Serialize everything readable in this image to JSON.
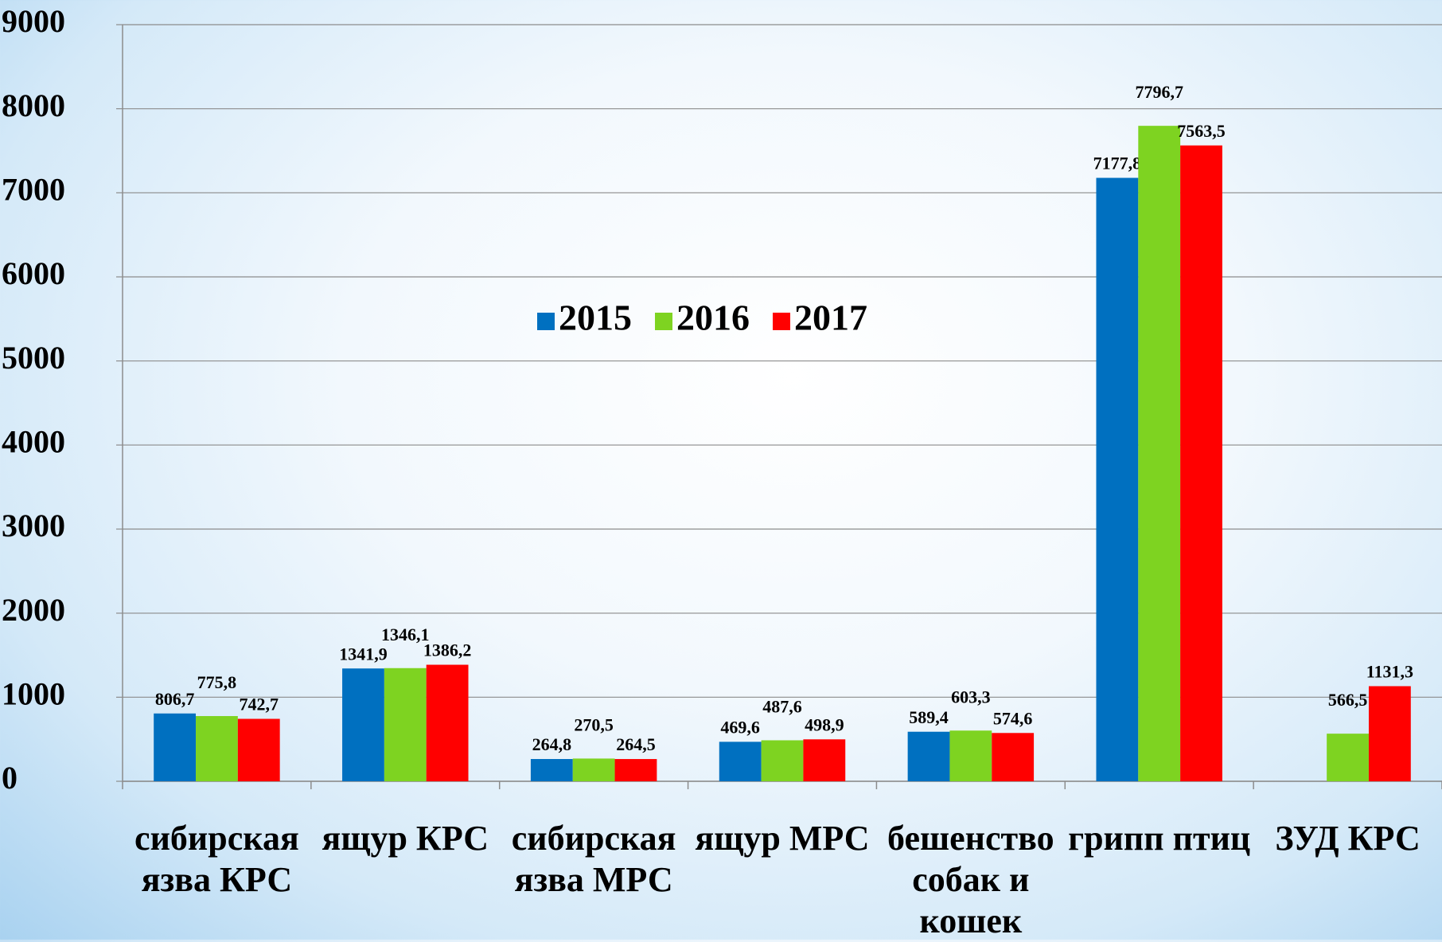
{
  "chart_data": {
    "type": "bar",
    "categories": [
      "сибирская язва КРС",
      "ящур КРС",
      "сибирская язва МРС",
      "ящур МРС",
      "бешенство собак и кошек",
      "грипп птиц",
      "ЗУД КРС"
    ],
    "series": [
      {
        "name": "2015",
        "color": "#0070c0",
        "values": [
          806.7,
          1341.9,
          264.8,
          469.6,
          589.4,
          7177.8,
          null
        ],
        "value_labels": [
          "806,7",
          "1341,9",
          "264,8",
          "469,6",
          "589,4",
          "7177,8",
          null
        ]
      },
      {
        "name": "2016",
        "color": "#7ed321",
        "values": [
          775.8,
          1346.1,
          270.5,
          487.6,
          603.3,
          7796.7,
          566.5
        ],
        "value_labels": [
          "775,8",
          "1346,1",
          "270,5",
          "487,6",
          "603,3",
          "7796,7",
          "566,5"
        ]
      },
      {
        "name": "2017",
        "color": "#ff0000",
        "values": [
          742.7,
          1386.2,
          264.5,
          498.9,
          574.6,
          7563.5,
          1131.3
        ],
        "value_labels": [
          "742,7",
          "1386,2",
          "264,5",
          "498,9",
          "574,6",
          "7563,5",
          "1131,3"
        ]
      }
    ],
    "ylim": [
      0,
      9000
    ],
    "yticks": [
      0,
      1000,
      2000,
      3000,
      4000,
      5000,
      6000,
      7000,
      8000,
      9000
    ],
    "grid": true,
    "legend": "center"
  }
}
